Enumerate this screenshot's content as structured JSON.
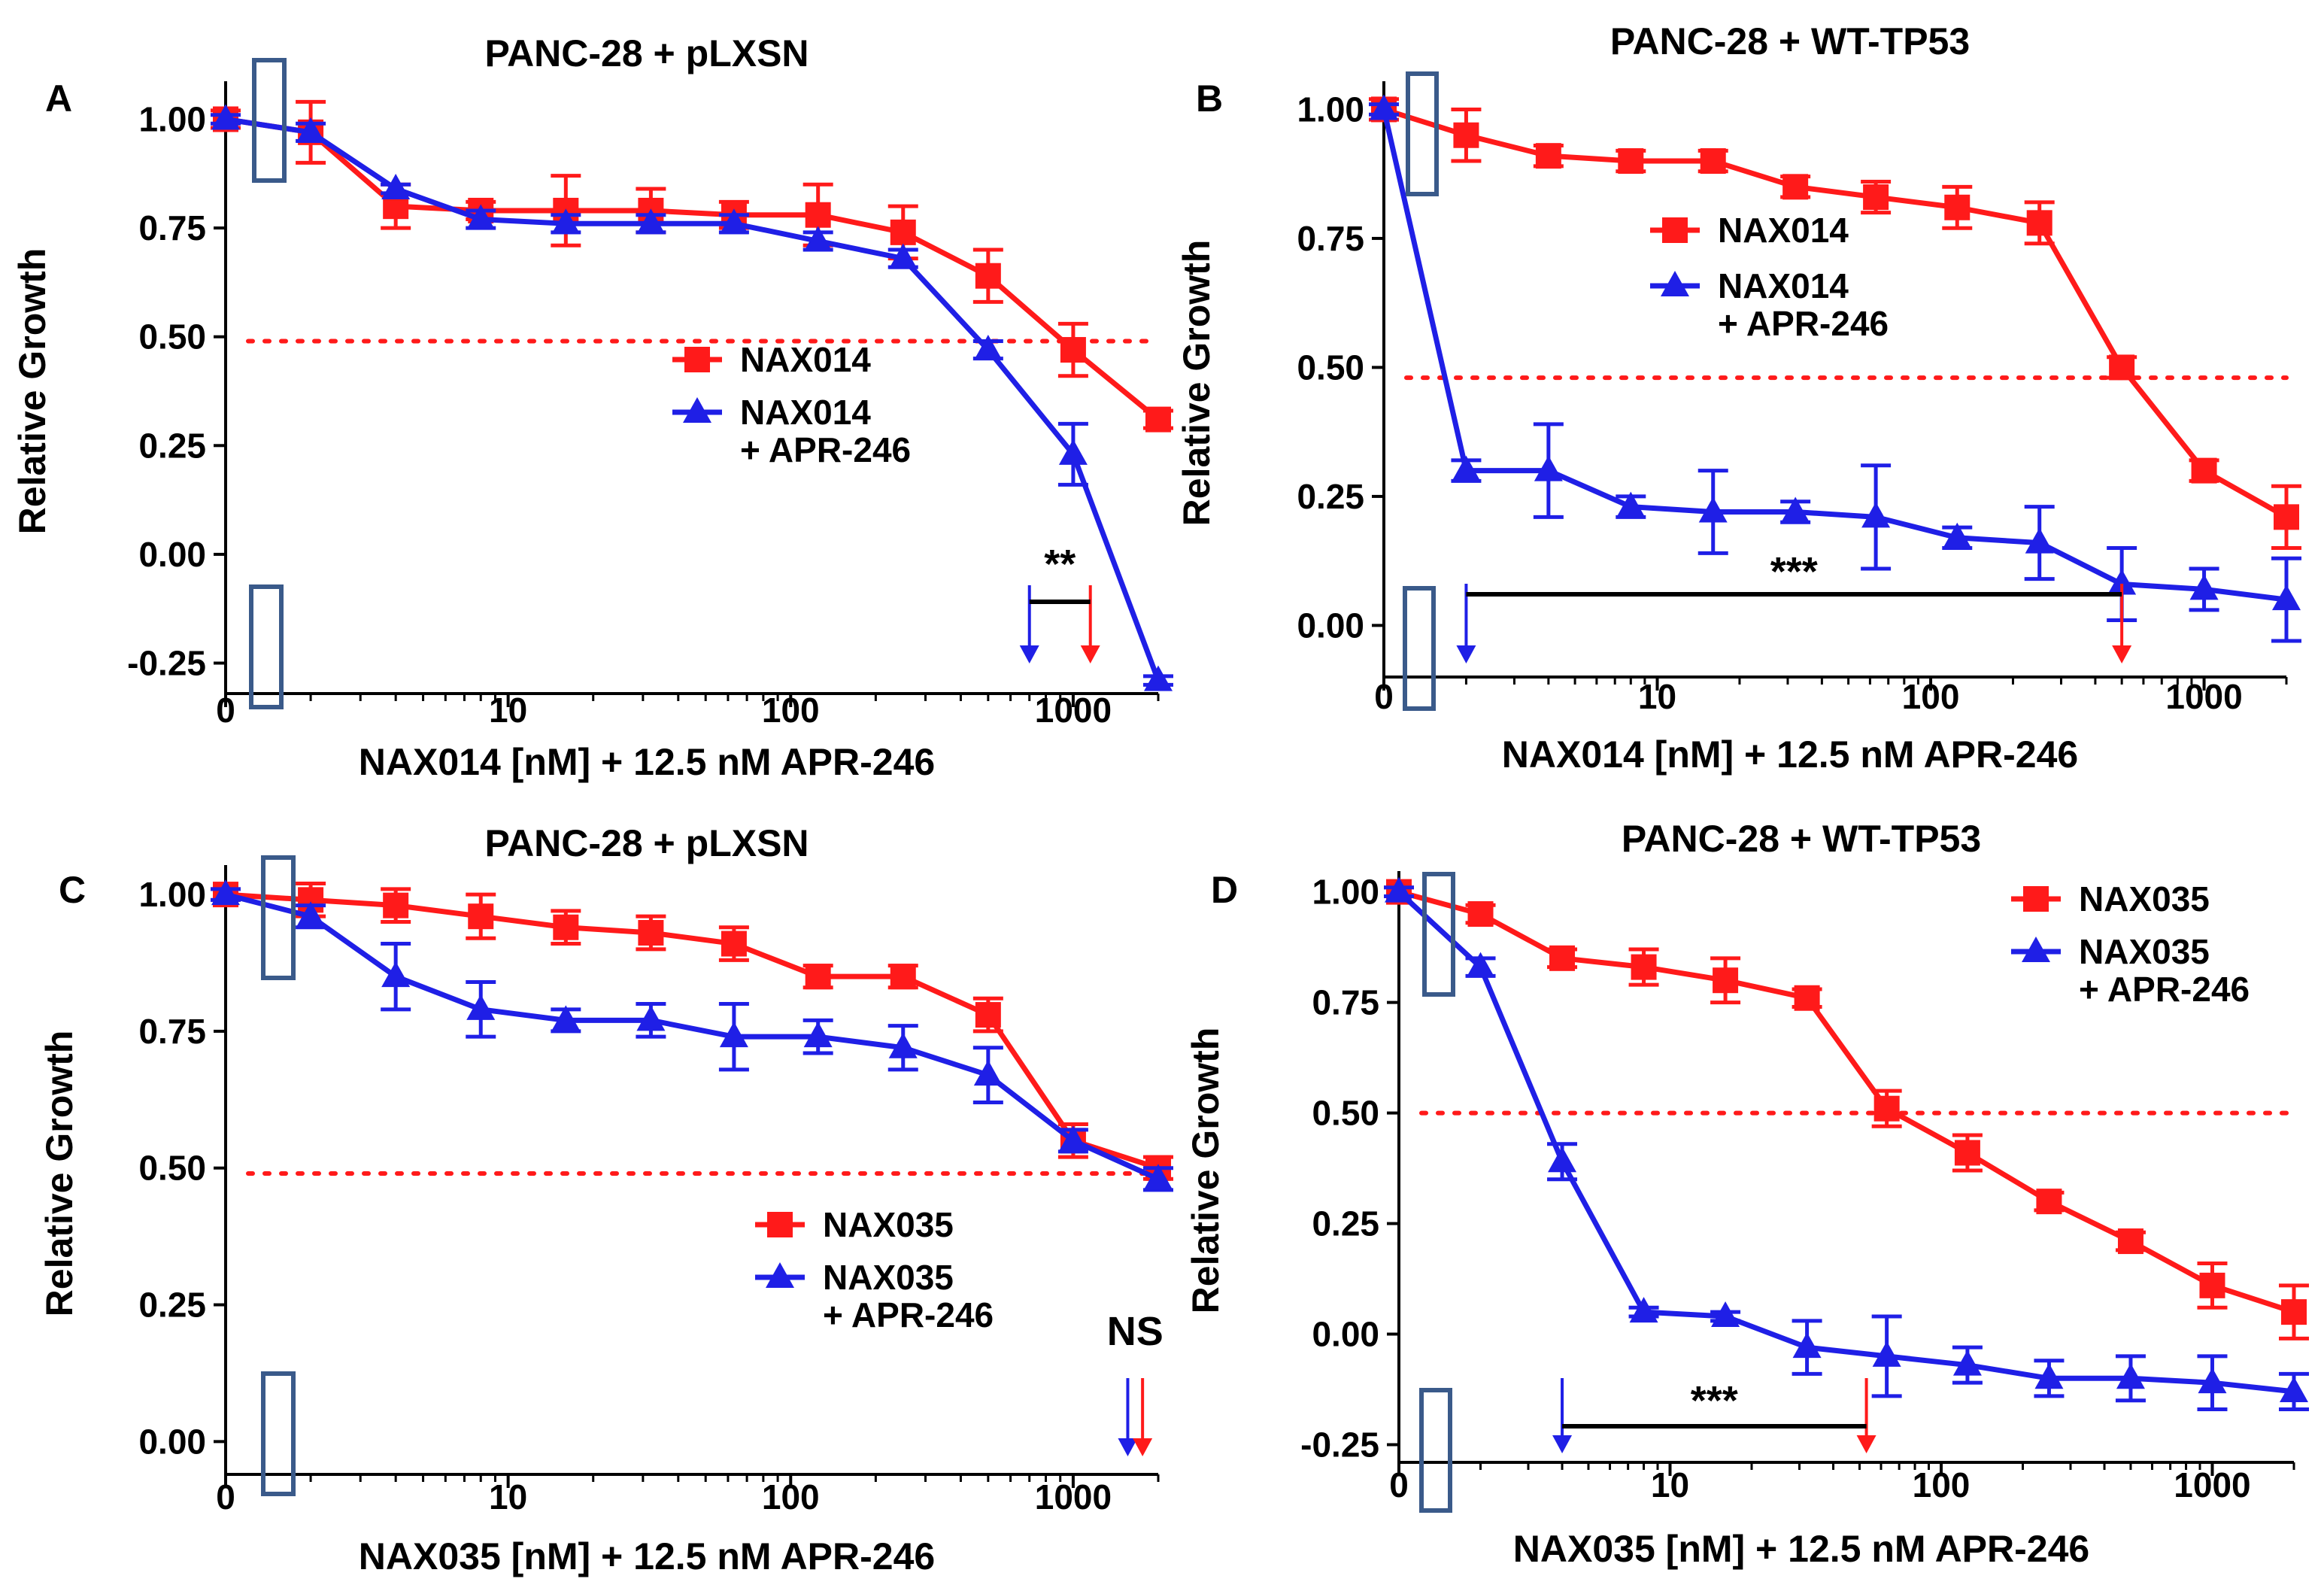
{
  "colors": {
    "red": "#ff1a1a",
    "blue": "#1f1fe6",
    "axis": "#000000",
    "box": "#3a5a8a"
  },
  "chart_data": [
    {
      "type": "line",
      "letter": "A",
      "title": "PANC-28 + pLXSN",
      "xlabel": "NAX014 [nM] + 12.5 nM APR-246",
      "ylabel": "Relative Growth",
      "xscale": "log",
      "xlim": [
        1,
        2000
      ],
      "ylim": [
        -0.32,
        1.07
      ],
      "x_ticks": [
        1,
        10,
        100,
        1000
      ],
      "x_tick_labels": [
        "0",
        "10",
        "100",
        "1000"
      ],
      "y_ticks": [
        -0.25,
        0,
        0.25,
        0.5,
        0.75,
        1.0
      ],
      "y_tick_labels": [
        "-0.25",
        "0.00",
        "0.25",
        "0.50",
        "0.75",
        "1.00"
      ],
      "reference_line": 0.49,
      "legend_position": "center-right",
      "series": [
        {
          "name": "NAX014",
          "marker": "square",
          "color_key": "red",
          "x": [
            1,
            2,
            4,
            8,
            16,
            32,
            63,
            125,
            250,
            500,
            1000,
            2000
          ],
          "y": [
            1.0,
            0.97,
            0.8,
            0.79,
            0.79,
            0.79,
            0.78,
            0.78,
            0.74,
            0.64,
            0.47,
            0.31
          ],
          "err": [
            0.02,
            0.07,
            0.05,
            0.02,
            0.08,
            0.05,
            0.03,
            0.07,
            0.06,
            0.06,
            0.06,
            0.02
          ]
        },
        {
          "name": "NAX014",
          "name_line2": "+ APR-246",
          "marker": "triangle",
          "color_key": "blue",
          "x": [
            1,
            2,
            4,
            8,
            16,
            32,
            63,
            125,
            250,
            500,
            1000,
            2000
          ],
          "y": [
            1.0,
            0.97,
            0.84,
            0.77,
            0.76,
            0.76,
            0.76,
            0.72,
            0.68,
            0.47,
            0.23,
            -0.29
          ],
          "err": [
            0.01,
            0.02,
            0.01,
            0.02,
            0.02,
            0.02,
            0.02,
            0.02,
            0.02,
            0.02,
            0.07,
            0.01
          ]
        }
      ],
      "significance": {
        "label": "**",
        "x_from": 700,
        "x_to": 1150
      }
    },
    {
      "type": "line",
      "letter": "B",
      "title": "PANC-28 + WT-TP53",
      "xlabel": "NAX014 [nM] + 12.5 nM APR-246",
      "ylabel": "Relative Growth",
      "xscale": "log",
      "xlim": [
        1,
        2000
      ],
      "ylim": [
        -0.1,
        1.04
      ],
      "x_ticks": [
        1,
        10,
        100,
        1000
      ],
      "x_tick_labels": [
        "0",
        "10",
        "100",
        "1000"
      ],
      "y_ticks": [
        0,
        0.25,
        0.5,
        0.75,
        1.0
      ],
      "y_tick_labels": [
        "0.00",
        "0.25",
        "0.50",
        "0.75",
        "1.00"
      ],
      "reference_line": 0.48,
      "legend_position": "top-center",
      "series": [
        {
          "name": "NAX014",
          "marker": "square",
          "color_key": "red",
          "x": [
            1,
            2,
            4,
            8,
            16,
            32,
            63,
            125,
            250,
            500,
            1000,
            2000
          ],
          "y": [
            1.0,
            0.95,
            0.91,
            0.9,
            0.9,
            0.85,
            0.83,
            0.81,
            0.78,
            0.5,
            0.3,
            0.21
          ],
          "err": [
            0.02,
            0.05,
            0.02,
            0.02,
            0.02,
            0.02,
            0.03,
            0.04,
            0.04,
            0.02,
            0.02,
            0.06
          ]
        },
        {
          "name": "NAX014",
          "name_line2": "+ APR-246",
          "marker": "triangle",
          "color_key": "blue",
          "x": [
            1,
            2,
            4,
            8,
            16,
            32,
            63,
            125,
            250,
            500,
            1000,
            2000
          ],
          "y": [
            1.0,
            0.3,
            0.3,
            0.23,
            0.22,
            0.22,
            0.21,
            0.17,
            0.16,
            0.08,
            0.07,
            0.05
          ],
          "err": [
            0.01,
            0.02,
            0.09,
            0.02,
            0.08,
            0.02,
            0.1,
            0.02,
            0.07,
            0.07,
            0.04,
            0.08
          ]
        }
      ],
      "significance": {
        "label": "***",
        "x_from": 2,
        "x_to": 500
      }
    },
    {
      "type": "line",
      "letter": "C",
      "title": "PANC-28 + pLXSN",
      "xlabel": "NAX035 [nM] + 12.5 nM APR-246",
      "ylabel": "Relative Growth",
      "xscale": "log",
      "xlim": [
        1,
        2000
      ],
      "ylim": [
        -0.06,
        1.04
      ],
      "x_ticks": [
        1,
        10,
        100,
        1000
      ],
      "x_tick_labels": [
        "0",
        "10",
        "100",
        "1000"
      ],
      "y_ticks": [
        0,
        0.25,
        0.5,
        0.75,
        1.0
      ],
      "y_tick_labels": [
        "0.00",
        "0.25",
        "0.50",
        "0.75",
        "1.00"
      ],
      "reference_line": 0.49,
      "legend_position": "bottom-right",
      "series": [
        {
          "name": "NAX035",
          "marker": "square",
          "color_key": "red",
          "x": [
            1,
            2,
            4,
            8,
            16,
            32,
            63,
            125,
            250,
            500,
            1000,
            2000
          ],
          "y": [
            1.0,
            0.99,
            0.98,
            0.96,
            0.94,
            0.93,
            0.91,
            0.85,
            0.85,
            0.78,
            0.55,
            0.5
          ],
          "err": [
            0.01,
            0.03,
            0.03,
            0.04,
            0.03,
            0.03,
            0.03,
            0.02,
            0.02,
            0.03,
            0.03,
            0.02
          ]
        },
        {
          "name": "NAX035",
          "name_line2": "+ APR-246",
          "marker": "triangle",
          "color_key": "blue",
          "x": [
            1,
            2,
            4,
            8,
            16,
            32,
            63,
            125,
            250,
            500,
            1000,
            2000
          ],
          "y": [
            1.0,
            0.96,
            0.85,
            0.79,
            0.77,
            0.77,
            0.74,
            0.74,
            0.72,
            0.67,
            0.55,
            0.48
          ],
          "err": [
            0.01,
            0.02,
            0.06,
            0.05,
            0.02,
            0.03,
            0.06,
            0.03,
            0.04,
            0.05,
            0.02,
            0.02
          ]
        }
      ],
      "significance": {
        "label": "NS",
        "x_from": 1560,
        "x_to": 1760
      }
    },
    {
      "type": "line",
      "letter": "D",
      "title": "PANC-28 + WT-TP53",
      "xlabel": "NAX035 [nM] + 12.5 nM APR-246",
      "ylabel": "Relative Growth",
      "xscale": "log",
      "xlim": [
        1,
        2000
      ],
      "ylim": [
        -0.29,
        1.03
      ],
      "x_ticks": [
        1,
        10,
        100,
        1000
      ],
      "x_tick_labels": [
        "0",
        "10",
        "100",
        "1000"
      ],
      "y_ticks": [
        -0.25,
        0,
        0.25,
        0.5,
        0.75,
        1.0
      ],
      "y_tick_labels": [
        "-0.25",
        "0.00",
        "0.25",
        "0.50",
        "0.75",
        "1.00"
      ],
      "reference_line": 0.5,
      "legend_position": "top-right",
      "series": [
        {
          "name": "NAX035",
          "marker": "square",
          "color_key": "red",
          "x": [
            1,
            2,
            4,
            8,
            16,
            32,
            63,
            125,
            250,
            500,
            1000,
            2000
          ],
          "y": [
            1.0,
            0.95,
            0.85,
            0.83,
            0.8,
            0.76,
            0.51,
            0.41,
            0.3,
            0.21,
            0.11,
            0.05
          ],
          "err": [
            0.01,
            0.02,
            0.02,
            0.04,
            0.05,
            0.02,
            0.04,
            0.04,
            0.02,
            0.02,
            0.05,
            0.06
          ]
        },
        {
          "name": "NAX035",
          "name_line2": "+ APR-246",
          "marker": "triangle",
          "color_key": "blue",
          "x": [
            1,
            2,
            4,
            8,
            16,
            32,
            63,
            125,
            250,
            500,
            1000,
            2000
          ],
          "y": [
            1.0,
            0.83,
            0.39,
            0.05,
            0.04,
            -0.03,
            -0.05,
            -0.07,
            -0.1,
            -0.1,
            -0.11,
            -0.13
          ],
          "err": [
            0.01,
            0.02,
            0.04,
            0.01,
            0.01,
            0.06,
            0.09,
            0.04,
            0.04,
            0.05,
            0.06,
            0.04
          ]
        }
      ],
      "significance": {
        "label": "***",
        "x_from": 4,
        "x_to": 53
      }
    }
  ]
}
